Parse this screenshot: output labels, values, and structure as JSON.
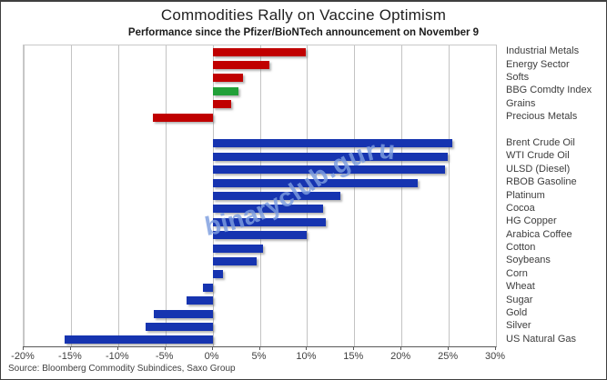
{
  "title": "Commodities Rally on Vaccine Optimism",
  "subtitle": "Performance since the Pfizer/BioNTech  announcement on November 9",
  "source": "Source: Bloomberg Commodity Subindices, Saxo Group",
  "watermark": "binaryclub.guru",
  "colors": {
    "subindex_red": "#c00000",
    "bbg_index_green": "#21a038",
    "commodity_blue": "#1634b0",
    "watermark_blue": "#7d9ee0",
    "gridline_gray": "#c3c3c3",
    "axis_gray": "#595959"
  },
  "chart_data": {
    "type": "bar",
    "orientation": "horizontal",
    "title": "Commodities Rally on Vaccine Optimism",
    "subtitle": "Performance since the Pfizer/BioNTech  announcement on November 9",
    "xlim": [
      -20,
      30
    ],
    "x_tick_labels": [
      "-20%",
      "-15%",
      "-10%",
      "-5%",
      "0%",
      "5%",
      "10%",
      "15%",
      "20%",
      "25%",
      "30%"
    ],
    "grid": true,
    "value_unit": "%",
    "groups": [
      {
        "name": "bloomberg-subindices",
        "bars": [
          {
            "label": "Industrial Metals",
            "value": 9.9,
            "color": "#c00000"
          },
          {
            "label": "Energy Sector",
            "value": 6.0,
            "color": "#c00000"
          },
          {
            "label": "Softs",
            "value": 3.2,
            "color": "#c00000"
          },
          {
            "label": "BBG Comdty Index",
            "value": 2.7,
            "color": "#21a038"
          },
          {
            "label": "Grains",
            "value": 2.0,
            "color": "#c00000"
          },
          {
            "label": "Precious Metals",
            "value": -6.3,
            "color": "#c00000"
          }
        ]
      },
      {
        "name": "individual-commodities",
        "bars": [
          {
            "label": "Brent Crude Oil",
            "value": 25.4,
            "color": "#1634b0"
          },
          {
            "label": "WTI Crude Oil",
            "value": 24.9,
            "color": "#1634b0"
          },
          {
            "label": "ULSD (Diesel)",
            "value": 24.6,
            "color": "#1634b0"
          },
          {
            "label": "RBOB Gasoline",
            "value": 21.7,
            "color": "#1634b0"
          },
          {
            "label": "Platinum",
            "value": 13.5,
            "color": "#1634b0"
          },
          {
            "label": "Cocoa",
            "value": 11.7,
            "color": "#1634b0"
          },
          {
            "label": "HG Copper",
            "value": 12.0,
            "color": "#1634b0"
          },
          {
            "label": "Arabica Coffee",
            "value": 10.0,
            "color": "#1634b0"
          },
          {
            "label": "Cotton",
            "value": 5.3,
            "color": "#1634b0"
          },
          {
            "label": "Soybeans",
            "value": 4.7,
            "color": "#1634b0"
          },
          {
            "label": "Corn",
            "value": 1.1,
            "color": "#1634b0"
          },
          {
            "label": "Wheat",
            "value": -1.0,
            "color": "#1634b0"
          },
          {
            "label": "Sugar",
            "value": -2.8,
            "color": "#1634b0"
          },
          {
            "label": "Gold",
            "value": -6.2,
            "color": "#1634b0"
          },
          {
            "label": "Silver",
            "value": -7.1,
            "color": "#1634b0"
          },
          {
            "label": "US Natural Gas",
            "value": -15.7,
            "color": "#1634b0"
          }
        ]
      }
    ]
  }
}
